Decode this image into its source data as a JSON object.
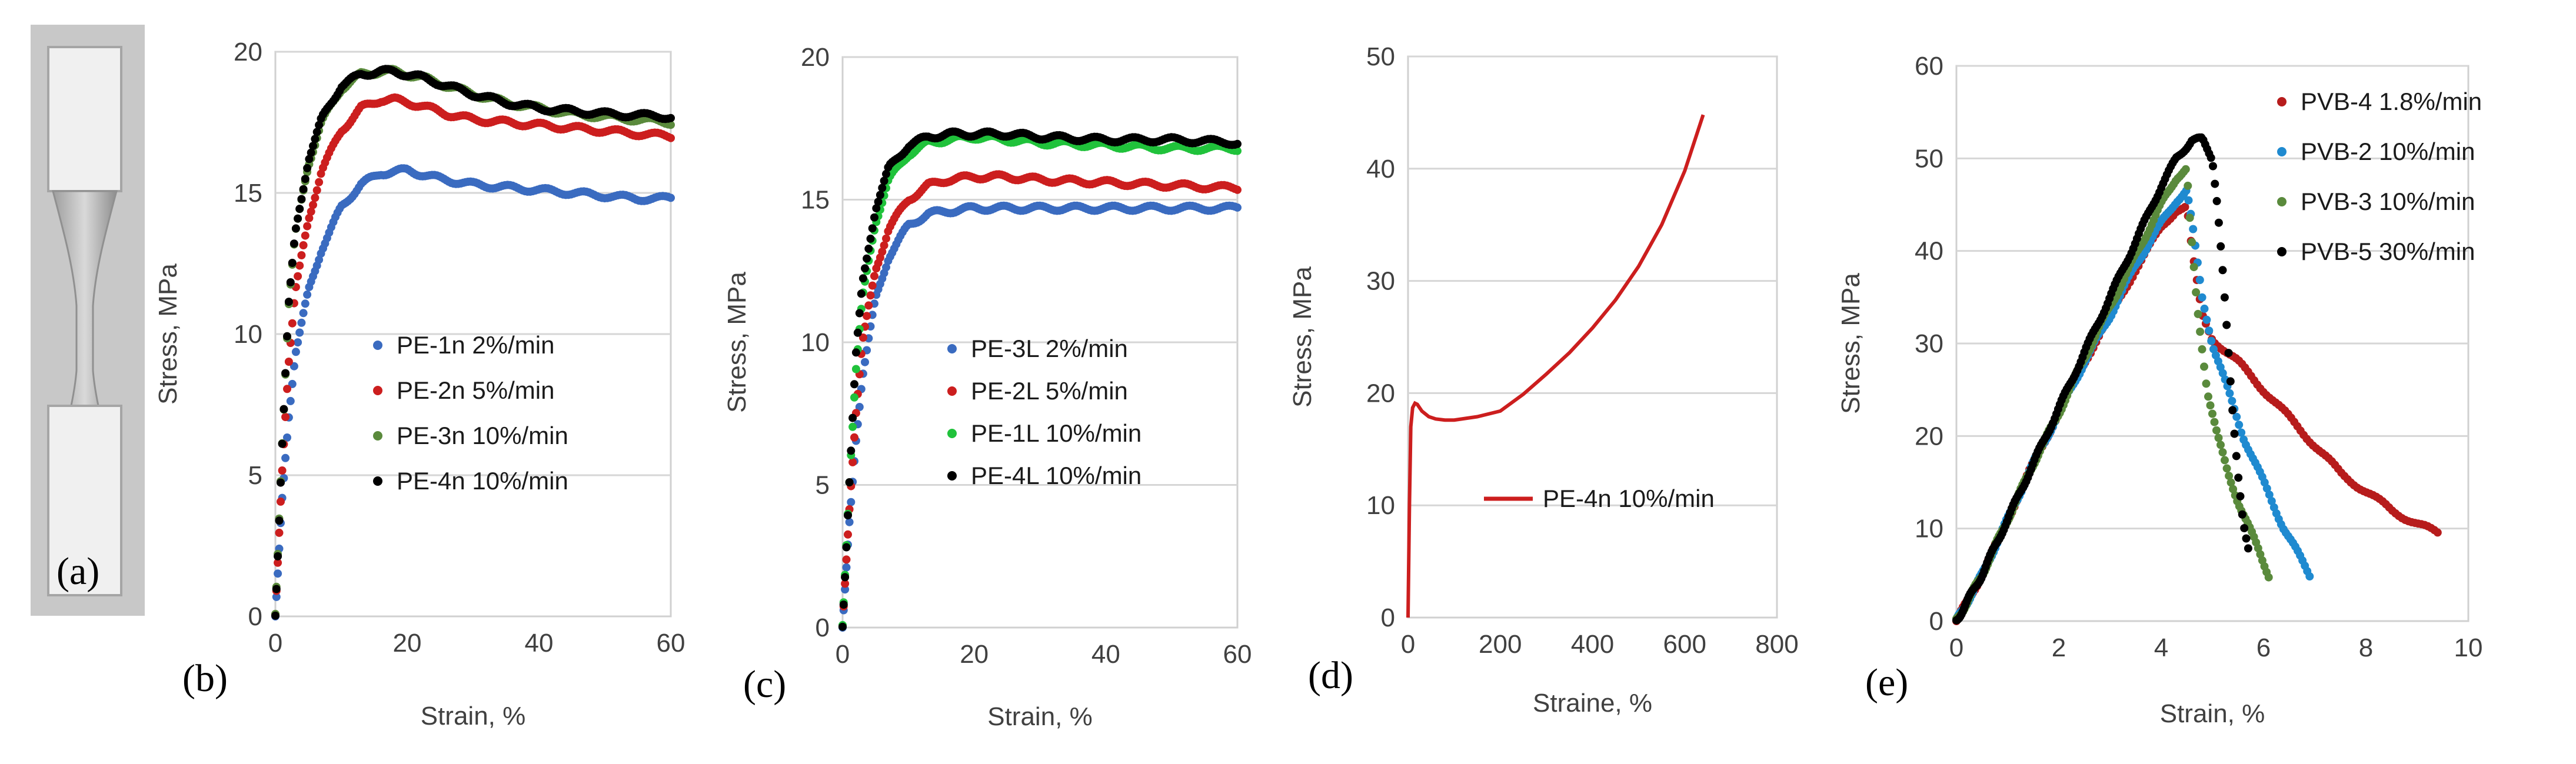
{
  "figure": {
    "panel_labels": {
      "a": "(a)",
      "b": "(b)",
      "c": "(c)",
      "d": "(d)",
      "e": "(e)"
    },
    "specimen_image": "dogbone-tensile-specimen-photo"
  },
  "colors": {
    "blue": "#3a6bc0",
    "red": "#cc1e1e",
    "green": "#3f9b3a",
    "bright_green": "#20c23b",
    "olive_green": "#5a8a3c",
    "black": "#000000",
    "dark_red": "#b71c1c",
    "light_blue": "#1f8ad0"
  },
  "chart_data": [
    {
      "id": "b",
      "type": "scatter",
      "title": "",
      "xlabel": "Strain, %",
      "ylabel": "Stress, MPa",
      "xlim": [
        0,
        60
      ],
      "ylim": [
        0,
        20
      ],
      "xticks": [
        "0",
        "20",
        "40",
        "60"
      ],
      "yticks": [
        "0",
        "5",
        "10",
        "15",
        "20"
      ],
      "grid": "horizontal",
      "legend_position": "center-right",
      "series": [
        {
          "name": "PE-1n 2%/min",
          "color": "blue",
          "x": [
            0,
            1,
            2,
            3,
            5,
            7,
            10,
            13,
            16,
            20,
            25,
            30,
            35,
            40,
            45,
            50,
            55,
            60
          ],
          "y": [
            0,
            4,
            7,
            9.3,
            11.5,
            13,
            14.5,
            15.3,
            15.7,
            15.8,
            15.5,
            15.3,
            15.2,
            15.1,
            15.0,
            14.9,
            14.8,
            14.8
          ]
        },
        {
          "name": "PE-2n 5%/min",
          "color": "red",
          "x": [
            0,
            1,
            2,
            3,
            5,
            7,
            10,
            13,
            16,
            18,
            22,
            26,
            30,
            35,
            40,
            45,
            50,
            55,
            60
          ],
          "y": [
            0,
            5,
            9,
            11.5,
            14,
            15.8,
            17.2,
            18,
            18.3,
            18.3,
            18.1,
            17.8,
            17.6,
            17.5,
            17.4,
            17.3,
            17.2,
            17.1,
            17.0
          ]
        },
        {
          "name": "PE-3n 10%/min",
          "color": "olive_green",
          "x": [
            0,
            1,
            2,
            3,
            5,
            7,
            10,
            13,
            16,
            18,
            22,
            26,
            30,
            35,
            40,
            45,
            50,
            55,
            60
          ],
          "y": [
            0,
            6,
            11,
            13.5,
            16,
            17.5,
            18.7,
            19.2,
            19.3,
            19.3,
            19.1,
            18.8,
            18.5,
            18.2,
            18.0,
            17.8,
            17.7,
            17.6,
            17.5
          ]
        },
        {
          "name": "PE-4n 10%/min",
          "color": "black",
          "x": [
            0,
            1,
            2,
            3,
            5,
            7,
            10,
            13,
            16,
            18,
            22,
            26,
            30,
            35,
            40,
            45,
            50,
            55,
            60
          ],
          "y": [
            0,
            6,
            11,
            13.5,
            16.2,
            17.6,
            18.8,
            19.2,
            19.3,
            19.3,
            19.1,
            18.8,
            18.5,
            18.2,
            18.0,
            17.9,
            17.8,
            17.75,
            17.7
          ]
        }
      ]
    },
    {
      "id": "c",
      "type": "scatter",
      "title": "",
      "xlabel": "Strain, %",
      "ylabel": "Stress, MPa",
      "xlim": [
        0,
        60
      ],
      "ylim": [
        0,
        20
      ],
      "xticks": [
        "0",
        "20",
        "40",
        "60"
      ],
      "yticks": [
        "0",
        "5",
        "10",
        "15",
        "20"
      ],
      "grid": "horizontal",
      "legend_position": "center-right",
      "series": [
        {
          "name": "PE-3L 2%/min",
          "color": "blue",
          "x": [
            0,
            1,
            2,
            3,
            5,
            7,
            10,
            13,
            16,
            20,
            25,
            30,
            40,
            50,
            60
          ],
          "y": [
            0,
            3.5,
            6.5,
            8.8,
            11.5,
            13,
            14.1,
            14.5,
            14.6,
            14.7,
            14.7,
            14.7,
            14.7,
            14.7,
            14.7
          ]
        },
        {
          "name": "PE-2L 5%/min",
          "color": "red",
          "x": [
            0,
            1,
            2,
            3,
            5,
            7,
            10,
            13,
            16,
            20,
            25,
            30,
            40,
            50,
            60
          ],
          "y": [
            0,
            4,
            7.5,
            10,
            12.5,
            14,
            15,
            15.5,
            15.7,
            15.8,
            15.8,
            15.7,
            15.6,
            15.5,
            15.4
          ]
        },
        {
          "name": "PE-1L 10%/min",
          "color": "bright_green",
          "x": [
            0,
            1,
            2,
            3,
            5,
            7,
            10,
            13,
            16,
            20,
            25,
            30,
            40,
            50,
            60
          ],
          "y": [
            0,
            5,
            9,
            11.5,
            14.2,
            15.7,
            16.6,
            17,
            17.1,
            17.2,
            17.1,
            17.0,
            16.9,
            16.8,
            16.8
          ]
        },
        {
          "name": "PE-4L 10%/min",
          "color": "black",
          "x": [
            0,
            1,
            2,
            3,
            5,
            7,
            10,
            13,
            16,
            20,
            25,
            30,
            40,
            50,
            60
          ],
          "y": [
            0,
            5,
            9.5,
            12,
            14.7,
            16.1,
            16.9,
            17.2,
            17.3,
            17.3,
            17.3,
            17.2,
            17.1,
            17.1,
            17.0
          ]
        }
      ]
    },
    {
      "id": "d",
      "type": "line",
      "title": "",
      "xlabel": "Straine, %",
      "ylabel": "Stress, MPa",
      "xlim": [
        0,
        800
      ],
      "ylim": [
        0,
        50
      ],
      "xticks": [
        "0",
        "200",
        "400",
        "600",
        "800"
      ],
      "yticks": [
        "0",
        "10",
        "20",
        "30",
        "40",
        "50"
      ],
      "grid": "horizontal",
      "legend_position": "center-right",
      "series": [
        {
          "name": "PE-4n 10%/min",
          "color": "red",
          "x": [
            0,
            3,
            6,
            10,
            15,
            20,
            30,
            45,
            60,
            80,
            100,
            150,
            200,
            250,
            300,
            350,
            400,
            450,
            500,
            550,
            600,
            640
          ],
          "y": [
            0,
            10,
            17,
            18.7,
            19.1,
            19,
            18.4,
            17.9,
            17.7,
            17.6,
            17.6,
            17.9,
            18.4,
            19.9,
            21.7,
            23.6,
            25.8,
            28.3,
            31.3,
            35,
            39.8,
            44.8
          ]
        }
      ]
    },
    {
      "id": "e",
      "type": "scatter",
      "title": "",
      "xlabel": "Strain, %",
      "ylabel": "Stress, MPa",
      "xlim": [
        0,
        10
      ],
      "ylim": [
        0,
        60
      ],
      "xticks": [
        "0",
        "2",
        "4",
        "6",
        "8",
        "10"
      ],
      "yticks": [
        "0",
        "10",
        "20",
        "30",
        "40",
        "50",
        "60"
      ],
      "grid": "horizontal",
      "legend_position": "top-right",
      "series": [
        {
          "name": "PVB-4 1.8%/min",
          "color": "dark_red",
          "x": [
            0,
            0.5,
            1,
            1.5,
            2,
            2.5,
            3,
            3.5,
            4,
            4.3,
            4.5,
            4.6,
            4.8,
            5.0,
            5.5,
            6.0,
            6.5,
            7.0,
            7.5,
            8.0,
            8.5,
            9.0,
            9.4
          ],
          "y": [
            0,
            5,
            11,
            17,
            22.5,
            28,
            33,
            38,
            42.5,
            44.5,
            44.8,
            40,
            33,
            30.5,
            28,
            25,
            22,
            19,
            16,
            14,
            12,
            10.5,
            9.5
          ]
        },
        {
          "name": "PVB-2 10%/min",
          "color": "light_blue",
          "x": [
            0,
            0.5,
            1,
            1.5,
            2,
            2.5,
            3,
            3.5,
            4,
            4.3,
            4.5,
            4.6,
            4.8,
            5.0,
            5.3,
            5.6,
            6.0,
            6.4,
            6.9
          ],
          "y": [
            0,
            5,
            11,
            17,
            22.5,
            28,
            33,
            38.5,
            43,
            45.5,
            46.5,
            43,
            35,
            30,
            25,
            20,
            15,
            10,
            5
          ]
        },
        {
          "name": "PVB-3 10%/min",
          "color": "olive_green",
          "x": [
            0,
            0.5,
            1,
            1.5,
            2,
            2.5,
            3,
            3.5,
            4,
            4.3,
            4.5,
            4.55,
            4.7,
            4.9,
            5.1,
            5.3,
            5.5,
            5.8,
            6.1
          ],
          "y": [
            0,
            5,
            11,
            17,
            22.5,
            28.5,
            34,
            39.5,
            45,
            48,
            48.8,
            44,
            34,
            25,
            20,
            16,
            13,
            9,
            5
          ]
        },
        {
          "name": "PVB-5 30%/min",
          "color": "black",
          "x": [
            0,
            0.5,
            1,
            1.5,
            2,
            2.5,
            3,
            3.5,
            4,
            4.3,
            4.6,
            4.8,
            5.0,
            5.1,
            5.2,
            5.3,
            5.4,
            5.5,
            5.6,
            5.7
          ],
          "y": [
            0,
            5,
            11,
            17,
            23,
            29,
            35,
            41,
            47,
            50,
            52,
            52,
            50,
            45,
            38,
            30,
            22,
            16,
            11,
            8
          ]
        }
      ]
    }
  ]
}
